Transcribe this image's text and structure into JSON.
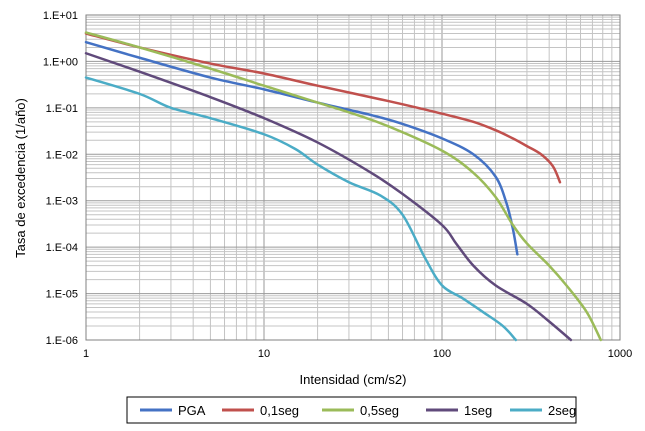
{
  "chart_data": {
    "type": "line",
    "xlabel": "Intensidad (cm/s2)",
    "ylabel": "Tasa de excedencia (1/año)",
    "xscale": "log",
    "yscale": "log",
    "xlim": [
      1,
      1000
    ],
    "ylim": [
      1e-06,
      10
    ],
    "grid": true,
    "legend_position": "bottom",
    "x_tick_labels": [
      "1",
      "10",
      "100",
      "1000"
    ],
    "y_tick_labels": [
      "1.E-06",
      "1.E-05",
      "1.E-04",
      "1.E-03",
      "1.E-02",
      "1.E-01",
      "1.E+00",
      "1.E+01"
    ],
    "series": [
      {
        "name": "PGA",
        "color": "#4472C4",
        "points": [
          [
            1,
            2.6
          ],
          [
            2,
            1.2
          ],
          [
            5,
            0.45
          ],
          [
            10,
            0.25
          ],
          [
            20,
            0.13
          ],
          [
            40,
            0.07
          ],
          [
            60,
            0.045
          ],
          [
            100,
            0.022
          ],
          [
            150,
            0.01
          ],
          [
            200,
            0.0033
          ],
          [
            230,
            0.0009
          ],
          [
            250,
            0.00025
          ],
          [
            265,
            7e-05
          ]
        ]
      },
      {
        "name": "0,1seg",
        "color": "#C0504D",
        "points": [
          [
            1,
            4.0
          ],
          [
            2,
            2.0
          ],
          [
            5,
            0.9
          ],
          [
            10,
            0.55
          ],
          [
            20,
            0.3
          ],
          [
            50,
            0.14
          ],
          [
            100,
            0.075
          ],
          [
            150,
            0.05
          ],
          [
            200,
            0.033
          ],
          [
            250,
            0.022
          ],
          [
            300,
            0.015
          ],
          [
            360,
            0.01
          ],
          [
            420,
            0.0055
          ],
          [
            460,
            0.0025
          ]
        ]
      },
      {
        "name": "0,5seg",
        "color": "#9BBB59",
        "points": [
          [
            1,
            4.2
          ],
          [
            2,
            2.0
          ],
          [
            5,
            0.7
          ],
          [
            10,
            0.3
          ],
          [
            20,
            0.13
          ],
          [
            30,
            0.08
          ],
          [
            50,
            0.04
          ],
          [
            100,
            0.012
          ],
          [
            150,
            0.004
          ],
          [
            200,
            0.0012
          ],
          [
            250,
            0.0003
          ],
          [
            300,
            0.00012
          ],
          [
            400,
            4e-05
          ],
          [
            500,
            1.5e-05
          ],
          [
            650,
            4e-06
          ],
          [
            780,
            1e-06
          ]
        ]
      },
      {
        "name": "1seg",
        "color": "#604A7B",
        "points": [
          [
            1,
            1.5
          ],
          [
            2,
            0.6
          ],
          [
            5,
            0.17
          ],
          [
            10,
            0.06
          ],
          [
            20,
            0.018
          ],
          [
            40,
            0.004
          ],
          [
            60,
            0.0014
          ],
          [
            100,
            0.0003
          ],
          [
            120,
            0.00012
          ],
          [
            150,
            4e-05
          ],
          [
            200,
            1.5e-05
          ],
          [
            300,
            6e-06
          ],
          [
            400,
            2.5e-06
          ],
          [
            530,
            1e-06
          ]
        ]
      },
      {
        "name": "2seg",
        "color": "#4BACC6",
        "points": [
          [
            1,
            0.45
          ],
          [
            2,
            0.2
          ],
          [
            3,
            0.1
          ],
          [
            5,
            0.06
          ],
          [
            10,
            0.027
          ],
          [
            15,
            0.013
          ],
          [
            20,
            0.006
          ],
          [
            30,
            0.0025
          ],
          [
            45,
            0.0013
          ],
          [
            60,
            0.0005
          ],
          [
            80,
            6e-05
          ],
          [
            100,
            1.5e-05
          ],
          [
            130,
            8e-06
          ],
          [
            170,
            4e-06
          ],
          [
            220,
            2e-06
          ],
          [
            260,
            1e-06
          ]
        ]
      }
    ]
  }
}
